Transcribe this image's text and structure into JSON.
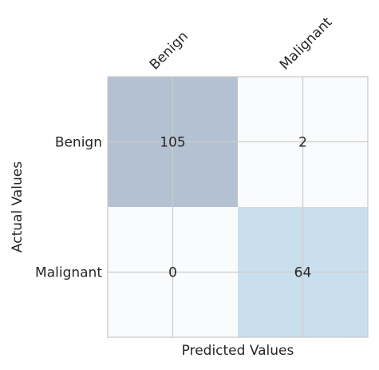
{
  "chart_data": {
    "type": "heatmap",
    "title": "",
    "xlabel": "Predicted Values",
    "ylabel": "Actual Values",
    "x_tick_position": "top",
    "x_categories": [
      "Benign",
      "Malignant"
    ],
    "y_categories": [
      "Benign",
      "Malignant"
    ],
    "values": [
      [
        105,
        2
      ],
      [
        0,
        64
      ]
    ],
    "cell_colors": [
      [
        "#b4c1d2",
        "#fafbfd"
      ],
      [
        "#fafbfd",
        "#c9dfee"
      ]
    ],
    "grid": true
  }
}
